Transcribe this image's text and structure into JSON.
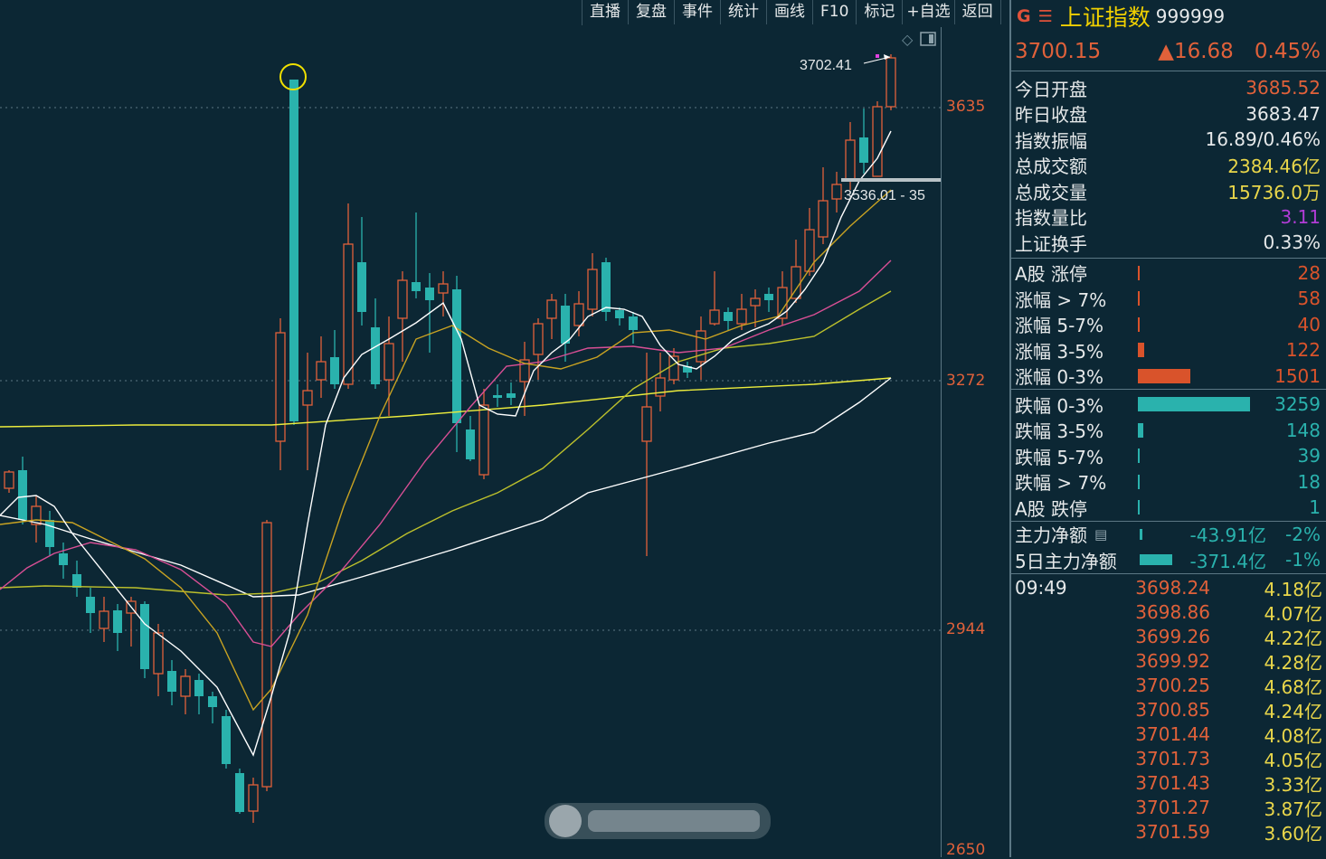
{
  "toolbar": [
    "直播",
    "复盘",
    "事件",
    "统计",
    "画线",
    "F10",
    "标记",
    "+自选",
    "返回"
  ],
  "axis_labels": [
    "3635",
    "3272",
    "2944",
    "2650"
  ],
  "price_labels": {
    "high": "3702.41",
    "range": "3536.01 - 35"
  },
  "header": {
    "g_icon": "G",
    "menu_icon": "☰",
    "name": "上证指数",
    "code": "999999"
  },
  "quote": {
    "price": "3700.15",
    "change": "▲16.68",
    "pct": "0.45%"
  },
  "stats": [
    {
      "label": "今日开盘",
      "value": "3685.52",
      "color": "#e0613a"
    },
    {
      "label": "昨日收盘",
      "value": "3683.47",
      "color": "#e6e9ea"
    },
    {
      "label": "指数振幅",
      "value": "16.89/0.46%",
      "color": "#e6e9ea"
    },
    {
      "label": "总成交额",
      "value": "2384.46亿",
      "color": "#e9d64a"
    },
    {
      "label": "总成交量",
      "value": "15736.0万",
      "color": "#e9d64a"
    },
    {
      "label": "指数量比",
      "value": "3.11",
      "color": "#b13cd6"
    },
    {
      "label": "上证换手",
      "value": "0.33%",
      "color": "#e6e9ea"
    }
  ],
  "breadth_up": [
    {
      "label": "A股 涨停",
      "value": "28",
      "bar": 2
    },
    {
      "label": "涨幅 > 7%",
      "value": "58",
      "bar": 2
    },
    {
      "label": "涨幅 5-7%",
      "value": "40",
      "bar": 2
    },
    {
      "label": "涨幅 3-5%",
      "value": "122",
      "bar": 7
    },
    {
      "label": "涨幅 0-3%",
      "value": "1501",
      "bar": 58
    }
  ],
  "breadth_down": [
    {
      "label": "跌幅 0-3%",
      "value": "3259",
      "bar": 124
    },
    {
      "label": "跌幅 3-5%",
      "value": "148",
      "bar": 6
    },
    {
      "label": "跌幅 5-7%",
      "value": "39",
      "bar": 2
    },
    {
      "label": "跌幅 > 7%",
      "value": "18",
      "bar": 2
    },
    {
      "label": "A股 跌停",
      "value": "1",
      "bar": 2
    }
  ],
  "flow": [
    {
      "label": "主力净额",
      "value": "-43.91亿",
      "pct": "-2%",
      "bar": 3
    },
    {
      "label": "5日主力净额",
      "value": "-371.4亿",
      "pct": "-1%",
      "bar": 36
    }
  ],
  "ticks_time": "09:49",
  "ticks": [
    {
      "price": "3698.24",
      "amount": "4.18亿"
    },
    {
      "price": "3698.86",
      "amount": "4.07亿"
    },
    {
      "price": "3699.26",
      "amount": "4.22亿"
    },
    {
      "price": "3699.92",
      "amount": "4.28亿"
    },
    {
      "price": "3700.25",
      "amount": "4.68亿"
    },
    {
      "price": "3700.85",
      "amount": "4.24亿"
    },
    {
      "price": "3701.44",
      "amount": "4.08亿"
    },
    {
      "price": "3701.73",
      "amount": "4.05亿"
    },
    {
      "price": "3701.43",
      "amount": "3.33亿"
    },
    {
      "price": "3701.27",
      "amount": "3.87亿"
    },
    {
      "price": "3701.59",
      "amount": "3.60亿"
    }
  ],
  "colors": {
    "up": "#e0613a",
    "down": "#2ab2ad",
    "bg": "#0c2734",
    "ma_white": "#ffffff",
    "ma_gold": "#c9a322",
    "ma_pink": "#d94f95",
    "ma_olive": "#bcc02c",
    "ma_yellow": "#ecec3c"
  }
}
